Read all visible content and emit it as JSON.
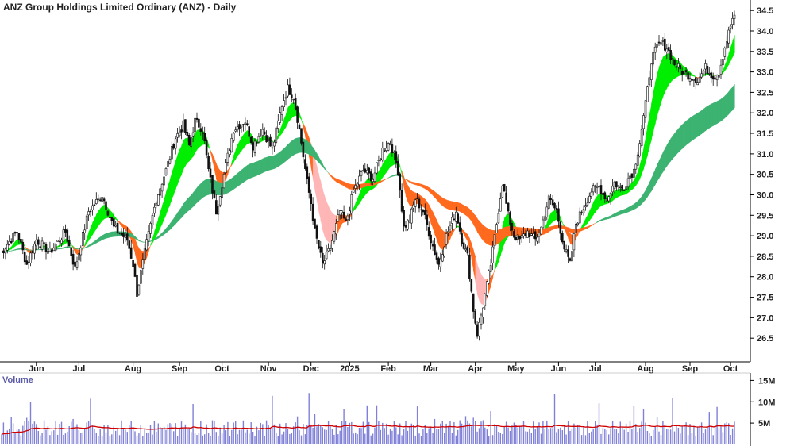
{
  "chart_data": [
    {
      "type": "candlestick",
      "title": "ANZ Group Holdings Limited Ordinary (ANZ) - Daily",
      "ylim": [
        26.0,
        34.6
      ],
      "yticks": [
        "26.5",
        "27.0",
        "27.5",
        "28.0",
        "28.5",
        "29.0",
        "29.5",
        "30.0",
        "30.5",
        "31.0",
        "31.5",
        "32.0",
        "32.5",
        "33.0",
        "33.5",
        "34.0",
        "34.5"
      ],
      "x_tick_labels": [
        "Jun",
        "Jul",
        "Aug",
        "Sep",
        "Oct",
        "Nov",
        "Dec",
        "2025",
        "Feb",
        "Mar",
        "Apr",
        "May",
        "Jun",
        "Jul",
        "Aug",
        "Sep",
        "Oct"
      ],
      "x_tick_days": [
        18,
        40,
        68,
        92,
        114,
        138,
        160,
        180,
        200,
        222,
        245,
        266,
        288,
        307,
        333,
        356,
        377
      ],
      "total_days": 380,
      "close_anchors": [
        [
          0,
          28.6
        ],
        [
          3,
          28.8
        ],
        [
          8,
          29.1
        ],
        [
          13,
          28.3
        ],
        [
          18,
          28.9
        ],
        [
          25,
          28.6
        ],
        [
          33,
          29.1
        ],
        [
          38,
          28.2
        ],
        [
          45,
          29.6
        ],
        [
          52,
          30.0
        ],
        [
          58,
          29.2
        ],
        [
          65,
          28.9
        ],
        [
          68,
          28.3
        ],
        [
          70,
          27.6
        ],
        [
          74,
          28.6
        ],
        [
          80,
          29.9
        ],
        [
          85,
          30.6
        ],
        [
          90,
          31.4
        ],
        [
          94,
          31.7
        ],
        [
          97,
          31.2
        ],
        [
          100,
          31.8
        ],
        [
          104,
          31.6
        ],
        [
          107,
          30.6
        ],
        [
          111,
          29.6
        ],
        [
          115,
          30.5
        ],
        [
          120,
          31.6
        ],
        [
          126,
          31.8
        ],
        [
          130,
          31.2
        ],
        [
          135,
          31.6
        ],
        [
          140,
          31.1
        ],
        [
          145,
          32.2
        ],
        [
          148,
          32.6
        ],
        [
          151,
          32.4
        ],
        [
          154,
          31.6
        ],
        [
          158,
          30.3
        ],
        [
          160,
          29.8
        ],
        [
          162,
          29.1
        ],
        [
          166,
          28.3
        ],
        [
          170,
          28.7
        ],
        [
          175,
          29.6
        ],
        [
          178,
          29.3
        ],
        [
          182,
          30.1
        ],
        [
          187,
          30.6
        ],
        [
          192,
          30.4
        ],
        [
          197,
          31.1
        ],
        [
          201,
          31.3
        ],
        [
          205,
          30.6
        ],
        [
          208,
          29.2
        ],
        [
          211,
          29.4
        ],
        [
          214,
          29.9
        ],
        [
          218,
          29.6
        ],
        [
          222,
          28.9
        ],
        [
          226,
          28.3
        ],
        [
          230,
          29.0
        ],
        [
          235,
          29.6
        ],
        [
          238,
          28.9
        ],
        [
          241,
          28.5
        ],
        [
          244,
          27.2
        ],
        [
          246,
          26.6
        ],
        [
          249,
          27.3
        ],
        [
          253,
          28.3
        ],
        [
          256,
          29.3
        ],
        [
          259,
          30.3
        ],
        [
          262,
          29.5
        ],
        [
          265,
          29.0
        ],
        [
          268,
          28.9
        ],
        [
          272,
          29.1
        ],
        [
          276,
          28.9
        ],
        [
          279,
          29.2
        ],
        [
          283,
          29.9
        ],
        [
          287,
          29.6
        ],
        [
          291,
          28.7
        ],
        [
          294,
          28.3
        ],
        [
          297,
          29.3
        ],
        [
          301,
          29.7
        ],
        [
          305,
          30.1
        ],
        [
          309,
          30.2
        ],
        [
          313,
          29.9
        ],
        [
          317,
          30.3
        ],
        [
          321,
          30.1
        ],
        [
          324,
          30.4
        ],
        [
          327,
          30.6
        ],
        [
          330,
          31.3
        ],
        [
          333,
          32.2
        ],
        [
          336,
          33.3
        ],
        [
          339,
          33.6
        ],
        [
          341,
          33.7
        ],
        [
          344,
          33.6
        ],
        [
          348,
          33.2
        ],
        [
          352,
          33.0
        ],
        [
          356,
          32.9
        ],
        [
          360,
          32.8
        ],
        [
          364,
          33.1
        ],
        [
          368,
          32.9
        ],
        [
          371,
          33.0
        ],
        [
          374,
          33.6
        ],
        [
          378,
          34.3
        ]
      ],
      "slope_seed": 7,
      "bands": [
        {
          "name": "",
          "color_up": "#00ee00",
          "color_down": "#ff6a1f",
          "color_weak_down": "#ffb6b6",
          "fast_period": 8,
          "slow_period": 20
        },
        {
          "name": "",
          "color_up": "#3cb371",
          "color_down": "#ff6a1f",
          "fast_period": 55,
          "slow_period": 85
        }
      ]
    },
    {
      "type": "bar",
      "title": "Volume",
      "ylim": [
        0,
        16000000
      ],
      "yticks": [
        "5M",
        "10M",
        "15M"
      ],
      "bar_color": "#8080d8",
      "average_line_color": "#d00000",
      "average_level": 5400000,
      "typical_volume": 4200000
    }
  ]
}
